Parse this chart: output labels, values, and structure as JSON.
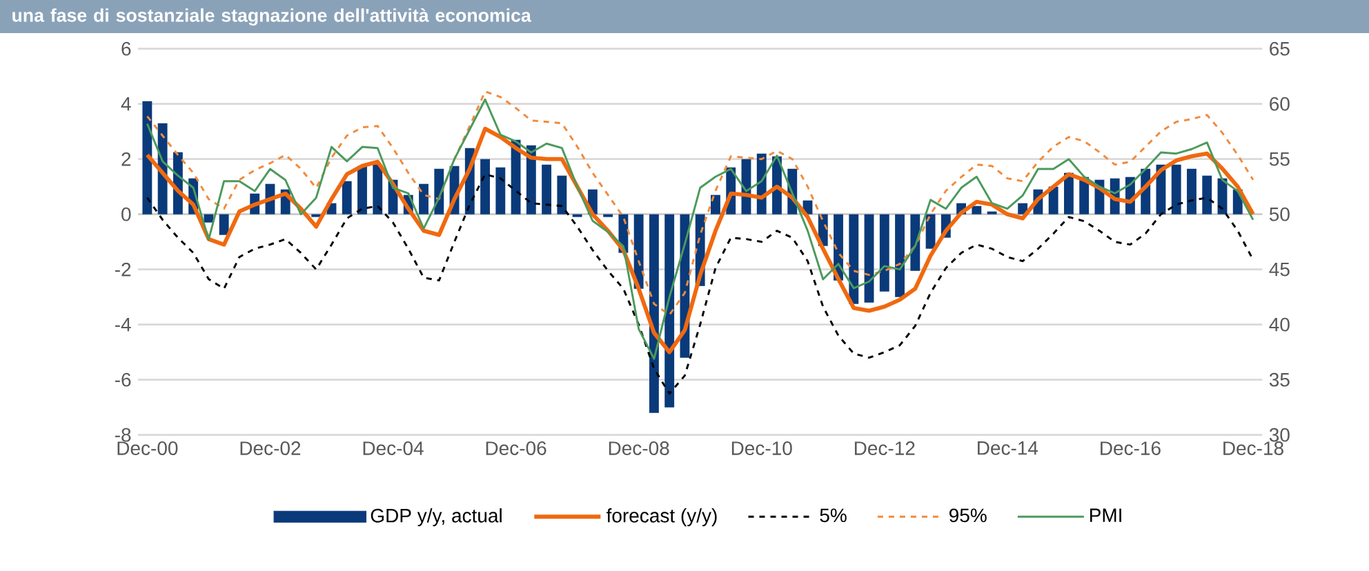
{
  "chart_data": {
    "type": "bar",
    "title": "una fase di sostanziale stagnazione dell'attività economica",
    "categories": [
      "Dec-00",
      null,
      null,
      null,
      null,
      null,
      null,
      null,
      "Dec-02",
      null,
      null,
      null,
      null,
      null,
      null,
      null,
      "Dec-04",
      null,
      null,
      null,
      null,
      null,
      null,
      null,
      "Dec-06",
      null,
      null,
      null,
      null,
      null,
      null,
      null,
      "Dec-08",
      null,
      null,
      null,
      null,
      null,
      null,
      null,
      "Dec-10",
      null,
      null,
      null,
      null,
      null,
      null,
      null,
      "Dec-12",
      null,
      null,
      null,
      null,
      null,
      null,
      null,
      "Dec-14",
      null,
      null,
      null,
      null,
      null,
      null,
      null,
      "Dec-16",
      null,
      null,
      null,
      null,
      null,
      null,
      null,
      "Dec-18"
    ],
    "series": [
      {
        "name": "GDP y/y, actual",
        "color": "#0a3a7a",
        "values": [
          4.1,
          3.3,
          2.25,
          1.3,
          -0.3,
          -0.75,
          0,
          0.75,
          1.1,
          0.9,
          0,
          -0.1,
          0.4,
          1.2,
          1.75,
          1.8,
          1.25,
          0.7,
          1.1,
          1.65,
          1.75,
          2.4,
          2.0,
          1.7,
          2.7,
          2.5,
          1.8,
          1.4,
          -0.1,
          0.9,
          -0.1,
          -1.4,
          -2.7,
          -7.2,
          -7.0,
          -5.2,
          -2.6,
          0.7,
          1.7,
          2.0,
          2.2,
          2.1,
          1.65,
          0.5,
          -1.15,
          -2.4,
          -3.25,
          -3.2,
          -2.8,
          -3.0,
          -2.05,
          -1.25,
          -0.85,
          0.4,
          0.3,
          0.1,
          0,
          0.4,
          0.9,
          1.0,
          1.5,
          1.35,
          1.25,
          1.3,
          1.35,
          1.65,
          1.8,
          1.8,
          1.65,
          1.4,
          1.3,
          0.9,
          null
        ]
      },
      {
        "name": "forecast (y/y)",
        "type": "line",
        "line_style": "solid",
        "color": "#f0690f",
        "values": [
          2.15,
          1.5,
          0.85,
          0.35,
          -0.9,
          -1.1,
          0.1,
          0.35,
          0.55,
          0.75,
          0.2,
          -0.45,
          0.55,
          1.45,
          1.75,
          1.9,
          1.1,
          0.2,
          -0.6,
          -0.75,
          0.55,
          1.65,
          3.1,
          2.8,
          2.4,
          2.05,
          2.0,
          2.0,
          1.0,
          0,
          -0.6,
          -1.3,
          -2.7,
          -4.3,
          -5.0,
          -4.2,
          -2.2,
          -0.6,
          0.75,
          0.7,
          0.6,
          1.0,
          0.6,
          -0.1,
          -1.25,
          -2.35,
          -3.4,
          -3.5,
          -3.35,
          -3.1,
          -2.7,
          -1.5,
          -0.6,
          0.05,
          0.45,
          0.35,
          0,
          -0.15,
          0.55,
          1.0,
          1.45,
          1.25,
          0.95,
          0.55,
          0.45,
          1.0,
          1.6,
          1.95,
          2.1,
          2.2,
          1.65,
          1.0,
          0
        ]
      },
      {
        "name": "5%",
        "type": "line",
        "line_style": "dashed",
        "color": "#000000",
        "values": [
          0.6,
          -0.2,
          -0.85,
          -1.4,
          -2.35,
          -2.7,
          -1.55,
          -1.25,
          -1.1,
          -0.9,
          -1.4,
          -2.0,
          -1.1,
          -0.15,
          0.2,
          0.3,
          -0.3,
          -1.25,
          -2.3,
          -2.4,
          -1.0,
          0.35,
          1.45,
          1.3,
          0.85,
          0.4,
          0.35,
          0.3,
          -0.45,
          -1.3,
          -2.05,
          -2.7,
          -4.0,
          -5.6,
          -6.5,
          -5.85,
          -4.0,
          -1.95,
          -0.85,
          -0.9,
          -1.0,
          -0.6,
          -0.85,
          -1.7,
          -3.35,
          -4.4,
          -5.05,
          -5.2,
          -5.0,
          -4.75,
          -4.05,
          -2.85,
          -1.95,
          -1.4,
          -1.1,
          -1.25,
          -1.55,
          -1.7,
          -1.25,
          -0.7,
          -0.1,
          -0.25,
          -0.6,
          -1.0,
          -1.1,
          -0.7,
          0,
          0.35,
          0.5,
          0.6,
          0.2,
          -0.6,
          -1.65
        ]
      },
      {
        "name": "95%",
        "type": "line",
        "line_style": "dashed",
        "color": "#f28a3c",
        "values": [
          3.55,
          2.85,
          2.15,
          1.5,
          0.55,
          0.2,
          1.25,
          1.6,
          1.85,
          2.15,
          1.65,
          0.95,
          2.05,
          2.85,
          3.15,
          3.2,
          2.4,
          1.5,
          0.7,
          0.55,
          2.0,
          3.2,
          4.45,
          4.25,
          3.85,
          3.4,
          3.35,
          3.3,
          2.45,
          1.5,
          0.7,
          -0.1,
          -1.7,
          -3.25,
          -3.65,
          -2.85,
          -0.75,
          0.85,
          2.1,
          2.05,
          2.0,
          2.3,
          2.0,
          1.0,
          -0.25,
          -1.4,
          -2.05,
          -2.2,
          -2.05,
          -1.8,
          -1.15,
          0,
          0.85,
          1.35,
          1.8,
          1.75,
          1.3,
          1.2,
          1.9,
          2.45,
          2.8,
          2.65,
          2.25,
          1.8,
          1.9,
          2.45,
          3.0,
          3.35,
          3.45,
          3.6,
          2.95,
          2.15,
          1.25
        ]
      },
      {
        "name": "PMI",
        "type": "line",
        "line_style": "solid",
        "axis": "y2",
        "color": "#4c9a5c",
        "values": [
          58.2,
          54.8,
          53.5,
          52.4,
          47.7,
          53.0,
          53.0,
          52.1,
          54.1,
          53.1,
          50.0,
          51.5,
          56.1,
          54.8,
          56.1,
          56.0,
          52.4,
          51.9,
          48.7,
          51.5,
          55.0,
          57.7,
          60.4,
          57.2,
          56.6,
          55.6,
          56.4,
          56.0,
          52.5,
          49.4,
          48.4,
          47.1,
          39.6,
          36.9,
          42.5,
          47.3,
          52.4,
          53.4,
          54.1,
          52.1,
          53.0,
          55.3,
          51.9,
          48.5,
          44.1,
          45.5,
          43.3,
          43.9,
          45.3,
          45.0,
          47.1,
          51.3,
          50.5,
          52.4,
          53.4,
          51.0,
          50.5,
          51.7,
          54.1,
          54.1,
          55.0,
          53.4,
          52.5,
          51.9,
          52.7,
          54.1,
          55.6,
          55.5,
          55.9,
          56.5,
          53.1,
          52.1,
          49.5
        ]
      }
    ],
    "ylim": [
      -8,
      6
    ],
    "yticks": [
      -8,
      -6,
      -4,
      -2,
      0,
      2,
      4,
      6
    ],
    "y2lim": [
      30,
      65
    ],
    "y2ticks": [
      30,
      35,
      40,
      45,
      50,
      55,
      60,
      65
    ],
    "grid": "y",
    "legend": "bottom",
    "marker": "none"
  }
}
